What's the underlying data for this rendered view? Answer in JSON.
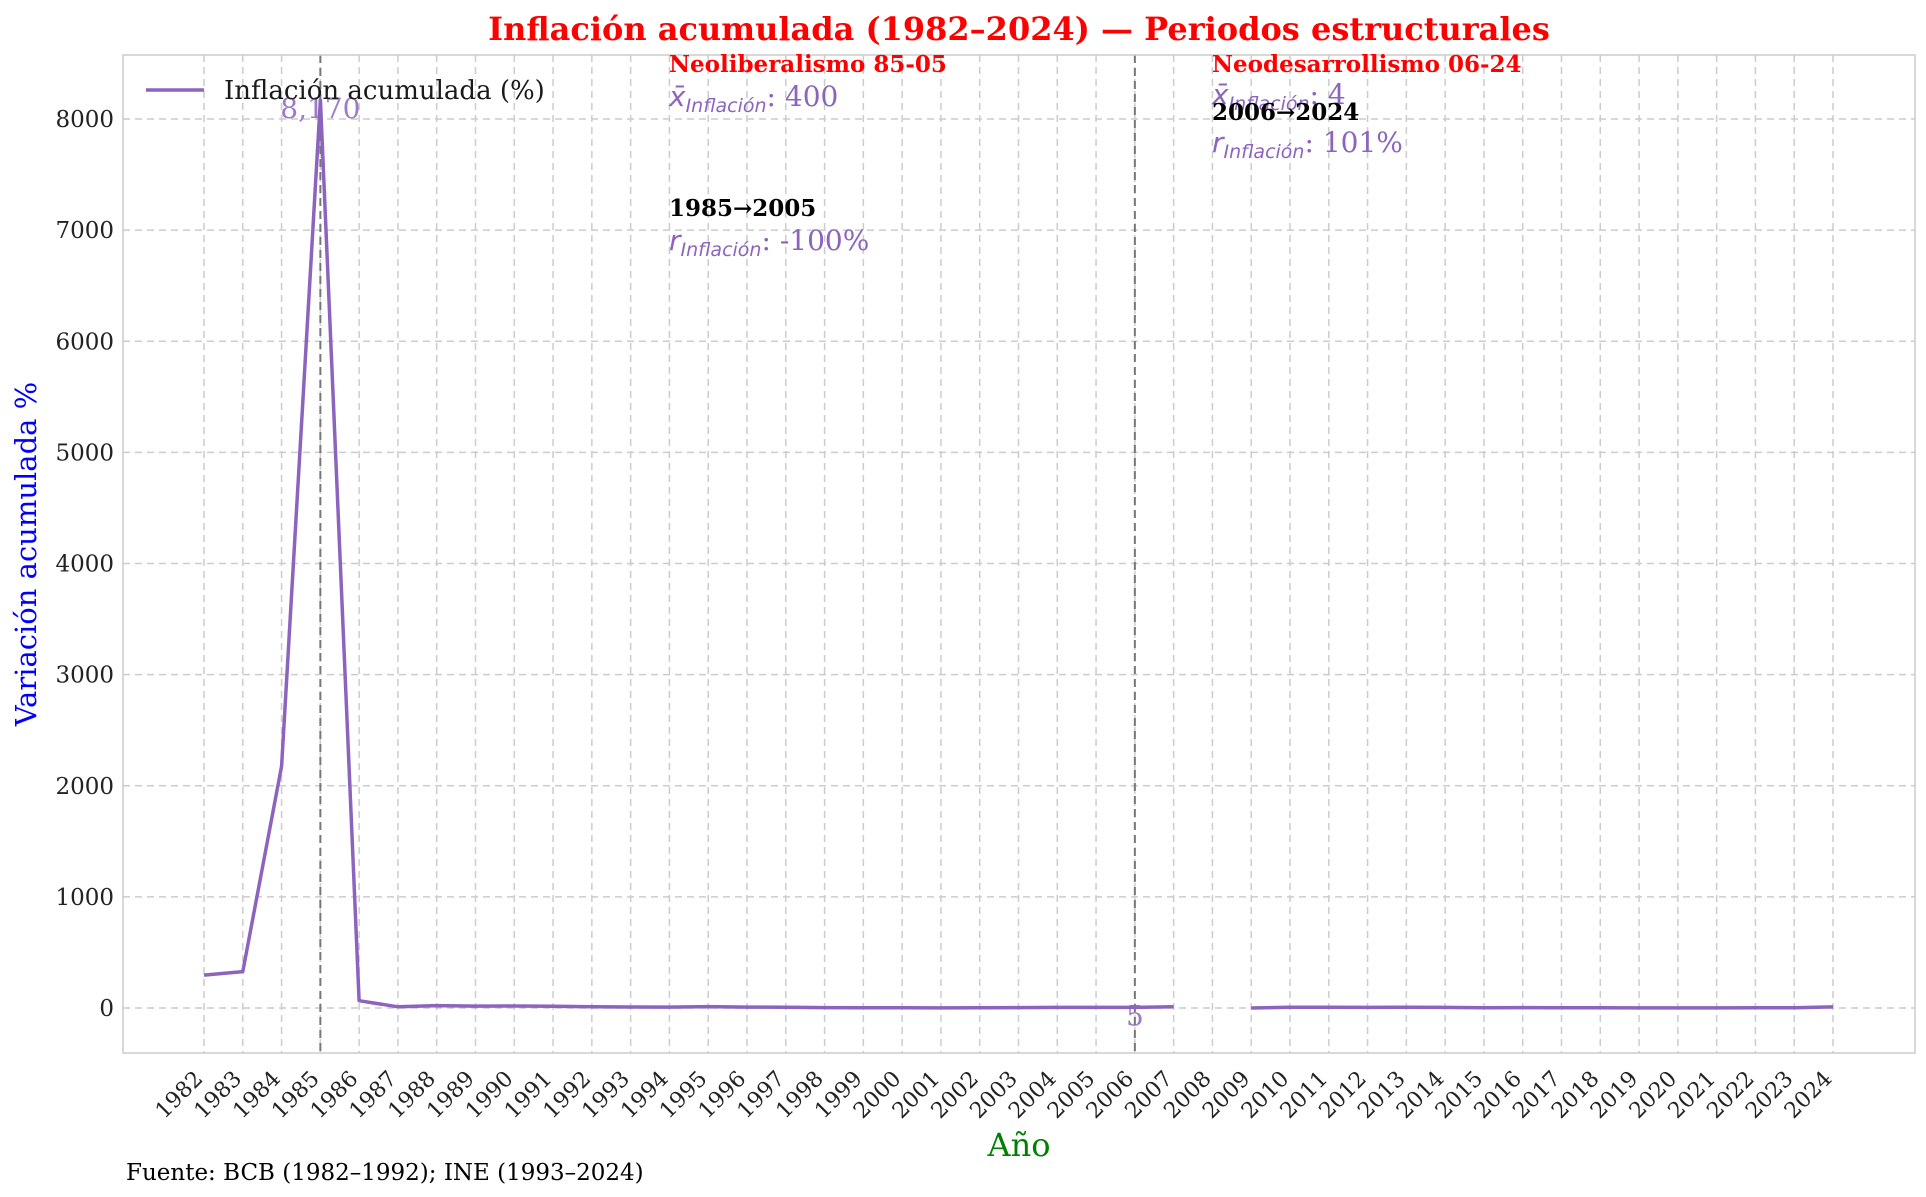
{
  "chart_data": {
    "type": "line",
    "title": "Inflación acumulada (1982–2024) — Periodos estructurales",
    "xlabel": "Año",
    "ylabel": "Variación acumulada %",
    "source": "Fuente: BCB (1982–1992); INE (1993–2024)",
    "ylim": [
      -400,
      8600
    ],
    "yticks": [
      0,
      1000,
      2000,
      3000,
      4000,
      5000,
      6000,
      7000,
      8000
    ],
    "grid": true,
    "legend_position": "top-left",
    "series": [
      {
        "name": "Inflación acumulada (%)",
        "color": "#8c64bd",
        "x": [
          1982,
          1983,
          1984,
          1985,
          1986,
          1987,
          1988,
          1989,
          1990,
          1991,
          1992,
          1993,
          1994,
          1995,
          1996,
          1997,
          1998,
          1999,
          2000,
          2001,
          2002,
          2003,
          2004,
          2005,
          2006,
          2007,
          2008,
          2009,
          2010,
          2011,
          2012,
          2013,
          2014,
          2015,
          2016,
          2017,
          2018,
          2019,
          2020,
          2021,
          2022,
          2023,
          2024
        ],
        "values": [
          296,
          328,
          2177,
          8170,
          66,
          11,
          22,
          17,
          18,
          15,
          11,
          9,
          8,
          13,
          8,
          7,
          4,
          3,
          3,
          1,
          2,
          4,
          5,
          5,
          5,
          12,
          null,
          0,
          7,
          7,
          5,
          7,
          5,
          3,
          4,
          3,
          2,
          1,
          1,
          1,
          3,
          2,
          10
        ]
      }
    ],
    "markers": [
      {
        "x": 1985,
        "color": "#777777",
        "style": "dashed"
      },
      {
        "x": 2006,
        "color": "#777777",
        "style": "dashed"
      }
    ],
    "point_labels": [
      {
        "x": 1985,
        "y": 8170,
        "text": "8,170"
      },
      {
        "x": 2006,
        "y": 5,
        "text": "5"
      }
    ],
    "periods": [
      {
        "name": "Neoliberalismo 85-05",
        "mean_label": "x̄",
        "mean_sub": "Inflación",
        "mean_value": ": 400",
        "range_label": "1985→2005",
        "r_label": "r",
        "r_sub": "Inflación",
        "r_value": ": -100%"
      },
      {
        "name": "Neodesarrollismo 06-24",
        "mean_label": "x̄",
        "mean_sub": "Inflación",
        "mean_value": ": 4",
        "range_label": "2006→2024",
        "r_label": "r",
        "r_sub": "Inflación",
        "r_value": ": 101%"
      }
    ]
  },
  "colors": {
    "title": "#ff0000",
    "xlabel": "#008000",
    "ylabel": "#0000ff",
    "period_name": "#ff0000",
    "stat_text": "#8c64bd",
    "range_text": "#000000",
    "grid": "#cccccc",
    "axes": "#cccccc"
  }
}
